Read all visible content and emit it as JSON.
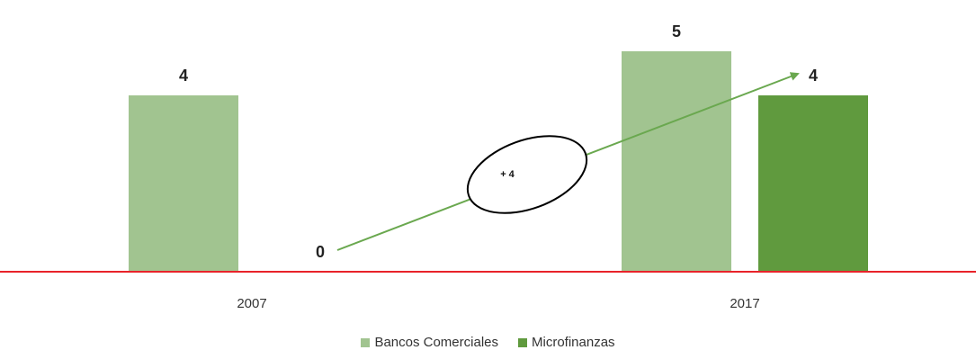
{
  "chart_data": {
    "type": "bar",
    "categories": [
      "2007",
      "2017"
    ],
    "series": [
      {
        "name": "Bancos Comerciales",
        "values": [
          4,
          5
        ],
        "color": "#a1c490"
      },
      {
        "name": "Microfinanzas",
        "values": [
          0,
          4
        ],
        "color": "#609a3e"
      }
    ],
    "ylim": [
      0,
      5
    ],
    "grid": false,
    "legend": "bottom",
    "baseline_color": "#e8232a",
    "annotation": {
      "text": "+ 4",
      "arrow_color": "#6aa84f"
    }
  }
}
